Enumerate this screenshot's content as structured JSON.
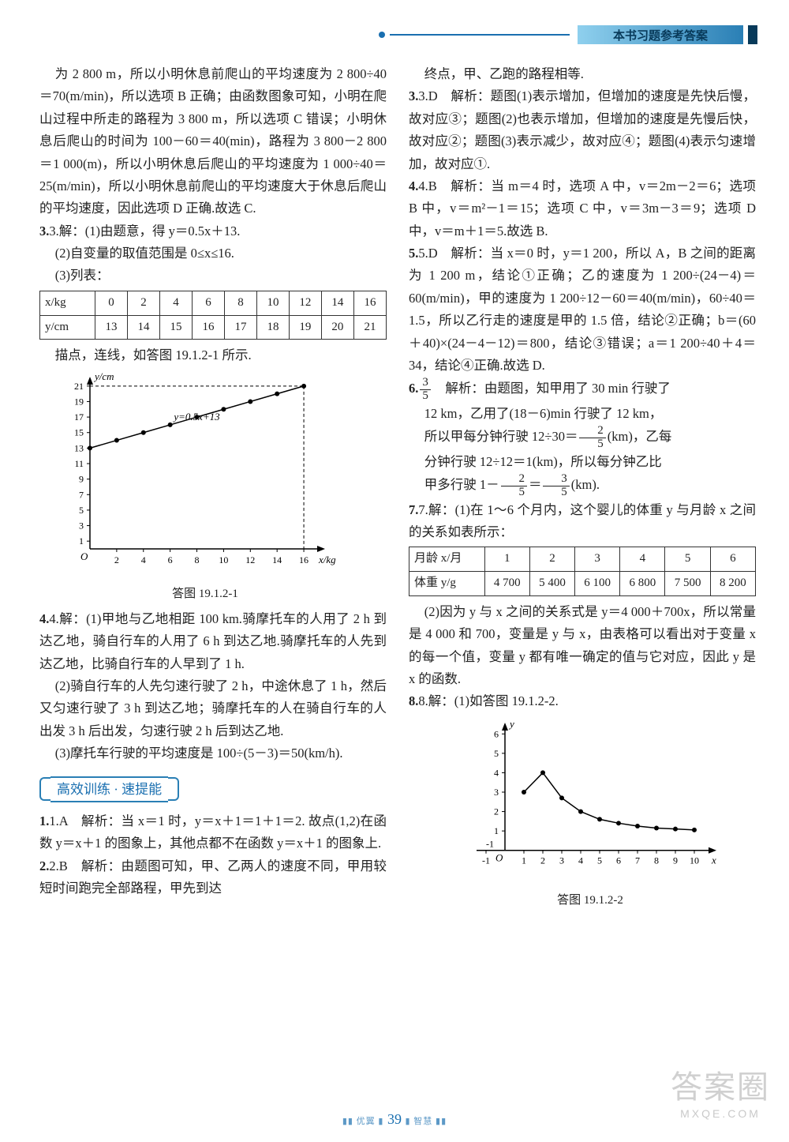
{
  "header": {
    "title": "本书习题参考答案"
  },
  "left": {
    "p1": "为 2 800 m，所以小明休息前爬山的平均速度为 2 800÷40＝70(m/min)，所以选项 B 正确；由函数图象可知，小明在爬山过程中所走的路程为 3 800 m，所以选项 C 错误；小明休息后爬山的时间为 100－60＝40(min)，路程为 3 800－2 800＝1 000(m)，所以小明休息后爬山的平均速度为 1 000÷40＝25(m/min)，所以小明休息前爬山的平均速度大于休息后爬山的平均速度，因此选项 D 正确.故选 C.",
    "p3a": "3.解：(1)由题意，得 y＝0.5x＋13.",
    "p3b": "(2)自变量的取值范围是 0≤x≤16.",
    "p3c": "(3)列表：",
    "table1": {
      "head_x": "x/kg",
      "head_y": "y/cm",
      "xs": [
        "0",
        "2",
        "4",
        "6",
        "8",
        "10",
        "12",
        "14",
        "16"
      ],
      "ys": [
        "13",
        "14",
        "15",
        "16",
        "17",
        "18",
        "19",
        "20",
        "21"
      ]
    },
    "p3d": "描点，连线，如答图 19.1.2-1 所示.",
    "chart1": {
      "type": "line",
      "x_values": [
        0,
        2,
        4,
        6,
        8,
        10,
        12,
        14,
        16
      ],
      "y_values": [
        13,
        14,
        15,
        16,
        17,
        18,
        19,
        20,
        21
      ],
      "y_ticks": [
        1,
        3,
        5,
        7,
        9,
        11,
        13,
        15,
        17,
        19,
        21
      ],
      "x_ticks": [
        2,
        4,
        6,
        8,
        10,
        12,
        14,
        16
      ],
      "xlabel": "x/kg",
      "ylabel": "y/cm",
      "line_label": "y=0.5x+13",
      "xlim": [
        0,
        17
      ],
      "ylim": [
        0,
        22
      ],
      "line_color": "#000000",
      "axis_color": "#000000",
      "background_color": "#ffffff",
      "marker": "dot",
      "marker_size": 3,
      "dash_guides": true,
      "dash_color": "#000000",
      "caption": "答图 19.1.2-1"
    },
    "p4a": "4.解：(1)甲地与乙地相距 100 km.骑摩托车的人用了 2 h 到达乙地，骑自行车的人用了 6 h 到达乙地.骑摩托车的人先到达乙地，比骑自行车的人早到了 1 h.",
    "p4b": "(2)骑自行车的人先匀速行驶了 2 h，中途休息了 1 h，然后又匀速行驶了 3 h 到达乙地；骑摩托车的人在骑自行车的人出发 3 h 后出发，匀速行驶 2 h 后到达乙地.",
    "p4c": "(3)摩托车行驶的平均速度是 100÷(5－3)＝50(km/h).",
    "section": "高效训练 · 速提能",
    "q1": "1.A　解析：当 x＝1 时，y＝x＋1＝1＋1＝2. 故点(1,2)在函数 y＝x＋1 的图象上，其他点都不在函数 y＝x＋1 的图象上.",
    "q2": "2.B　解析：由题图可知，甲、乙两人的速度不同，甲用较短时间跑完全部路程，甲先到达"
  },
  "right": {
    "p0": "终点，甲、乙跑的路程相等.",
    "q3": "3.D　解析：题图(1)表示增加，但增加的速度是先快后慢，故对应③；题图(2)也表示增加，但增加的速度是先慢后快，故对应②；题图(3)表示减少，故对应④；题图(4)表示匀速增加，故对应①.",
    "q4": "4.B　解析：当 m＝4 时，选项 A 中，v＝2m－2＝6；选项 B 中，v＝m²－1＝15；选项 C 中，v＝3m－3＝9；选项 D 中，v＝m＋1＝5.故选 B.",
    "q5": "5.D　解析：当 x＝0 时，y＝1 200，所以 A，B 之间的距离为 1 200 m，结论①正确；乙的速度为 1 200÷(24－4)＝60(m/min)，甲的速度为 1 200÷12－60＝40(m/min)，60÷40＝1.5，所以乙行走的速度是甲的 1.5 倍，结论②正确；b＝(60＋40)×(24－4－12)＝800，结论③错误；a＝1 200÷40＋4＝34，结论④正确.故选 D.",
    "q6_ans_top": "3",
    "q6_ans_bot": "5",
    "q6a": "　解析：由题图，知甲用了 30 min 行驶了",
    "q6b": "12 km，乙用了(18－6)min 行驶了 12 km，",
    "q6c_pre": "所以甲每分钟行驶 12÷30＝",
    "q6c_top": "2",
    "q6c_bot": "5",
    "q6c_post": "(km)，乙每",
    "q6d": "分钟行驶 12÷12＝1(km)，所以每分钟乙比",
    "q6e_pre": "甲多行驶 1－",
    "q6e_t1": "2",
    "q6e_b1": "5",
    "q6e_mid": "＝",
    "q6e_t2": "3",
    "q6e_b2": "5",
    "q6e_post": "(km).",
    "q7a": "7.解：(1)在 1～6 个月内，这个婴儿的体重 y 与月龄 x 之间的关系如表所示：",
    "table2": {
      "head_x": "月龄 x/月",
      "head_y": "体重 y/g",
      "xs": [
        "1",
        "2",
        "3",
        "4",
        "5",
        "6"
      ],
      "ys": [
        "4 700",
        "5 400",
        "6 100",
        "6 800",
        "7 500",
        "8 200"
      ]
    },
    "q7b": "(2)因为 y 与 x 之间的关系式是 y＝4 000＋700x，所以常量是 4 000 和 700，变量是 y 与 x，由表格可以看出对于变量 x 的每一个值，变量 y 都有唯一确定的值与它对应，因此 y 是 x 的函数.",
    "q8": "8.解：(1)如答图 19.1.2-2.",
    "chart2": {
      "type": "scatter-curve",
      "points_x": [
        1,
        2,
        3,
        4,
        5,
        6,
        7,
        8,
        9,
        10
      ],
      "points_y": [
        3.0,
        4.0,
        2.7,
        2.0,
        1.6,
        1.4,
        1.25,
        1.15,
        1.1,
        1.05
      ],
      "x_ticks": [
        -1,
        1,
        2,
        3,
        4,
        5,
        6,
        7,
        8,
        9,
        10
      ],
      "y_ticks": [
        1,
        2,
        3,
        4,
        5,
        6
      ],
      "xlabel": "x",
      "ylabel": "y",
      "xlim": [
        -1.5,
        11
      ],
      "ylim": [
        -0.5,
        6.5
      ],
      "curve_color": "#000000",
      "marker_color": "#000000",
      "axis_color": "#000000",
      "background_color": "#ffffff",
      "marker_size": 3,
      "line_width": 1.5,
      "caption": "答图 19.1.2-2"
    }
  },
  "page_number": "39",
  "watermark": {
    "main": "答案圈",
    "sub": "MXQE.COM"
  }
}
